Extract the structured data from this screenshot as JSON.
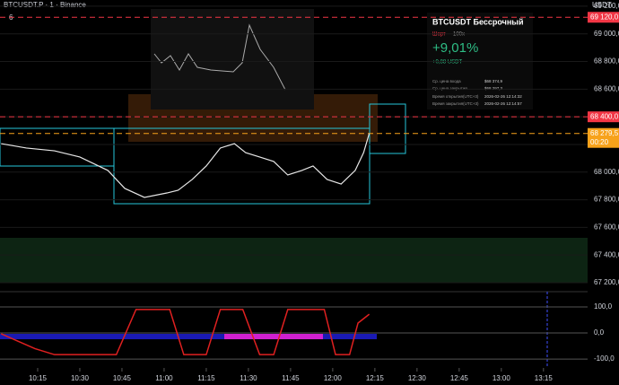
{
  "header": {
    "symbol": "BTCUSDT.P · 1 · Binance",
    "indicator_count": "6",
    "currency": "USDT"
  },
  "card": {
    "title": "BTCUSDT Бессрочный",
    "side": "Шорт",
    "leverage": "100x",
    "roi": "+9,01%",
    "pnl": "+0,88 USDT",
    "rows": [
      [
        "Ср. цена входа",
        "$68 374,9"
      ],
      [
        "Ср. цена закрытия",
        "$68 297,3"
      ],
      [
        "Время открытия(UTC+3)",
        "2026-02-26 12:14:32"
      ],
      [
        "Время закрытия(UTC+3)",
        "2026-02-26 12:14:57"
      ]
    ]
  },
  "chart_data": [
    {
      "type": "line",
      "color": "#e6e6e6",
      "x": [
        602,
        611,
        621,
        630,
        640,
        646,
        653,
        661,
        665,
        670,
        675,
        680,
        685,
        689,
        694,
        699,
        704,
        709,
        713,
        718,
        723,
        728,
        731,
        733
      ],
      "values": [
        68206,
        68174,
        68154,
        68109,
        68012,
        67882,
        67817,
        67849,
        67869,
        67947,
        68044,
        68174,
        68206,
        68141,
        68109,
        68077,
        67979,
        68012,
        68044,
        67947,
        67914,
        68012,
        68141,
        68279.5
      ],
      "xlim": [
        601.6,
        810.7
      ],
      "ylim": [
        67135,
        69245
      ],
      "xticks": [
        {
          "value": 615,
          "label": "10:15"
        },
        {
          "value": 630,
          "label": "10:30"
        },
        {
          "value": 645,
          "label": "10:45"
        },
        {
          "value": 660,
          "label": "11:00"
        },
        {
          "value": 675,
          "label": "11:15"
        },
        {
          "value": 690,
          "label": "11:30"
        },
        {
          "value": 705,
          "label": "11:45"
        },
        {
          "value": 720,
          "label": "12:00"
        },
        {
          "value": 735,
          "label": "12:15"
        },
        {
          "value": 750,
          "label": "12:30"
        },
        {
          "value": 765,
          "label": "12:45"
        },
        {
          "value": 780,
          "label": "13:00"
        },
        {
          "value": 795,
          "label": "13:15"
        }
      ],
      "yticks": [
        {
          "value": 67200,
          "label": "67 200,0"
        },
        {
          "value": 67400,
          "label": "67 400,0"
        },
        {
          "value": 67600,
          "label": "67 600,0"
        },
        {
          "value": 67800,
          "label": "67 800,0"
        },
        {
          "value": 68000,
          "label": "68 000,0"
        },
        {
          "value": 68200,
          "label": "68 200,0"
        },
        {
          "value": 68400,
          "label": "68 400,0"
        },
        {
          "value": 68600,
          "label": "68 600,0"
        },
        {
          "value": 68800,
          "label": "68 800,0"
        },
        {
          "value": 69000,
          "label": "69 000,0"
        },
        {
          "value": 69200,
          "label": "69 200,0"
        }
      ],
      "price_marks": [
        {
          "value": 69120,
          "label": "69 120,0",
          "color": "#f23645"
        },
        {
          "value": 68400,
          "label": "68 400,0",
          "color": "#f23645"
        },
        {
          "value": 68279.5,
          "label": "68 279,5",
          "color": "#f7a21b",
          "timer": "00:20"
        }
      ]
    },
    {
      "type": "line",
      "color": "#e02020",
      "x": [
        602,
        614,
        621,
        643,
        650,
        662,
        667,
        675,
        680,
        688,
        694,
        699,
        704,
        717,
        721,
        726,
        729,
        733
      ],
      "values": [
        -3,
        -60,
        -83,
        -83,
        90,
        90,
        -83,
        -83,
        90,
        90,
        -83,
        -83,
        90,
        90,
        -83,
        -83,
        38,
        72
      ],
      "xlim": [
        601.6,
        810.7
      ],
      "ylim": [
        -134,
        148
      ],
      "yticks": [
        {
          "value": 100,
          "label": "100,0"
        },
        {
          "value": 0,
          "label": "0,0"
        },
        {
          "value": -100,
          "label": "-100,0"
        }
      ]
    }
  ]
}
